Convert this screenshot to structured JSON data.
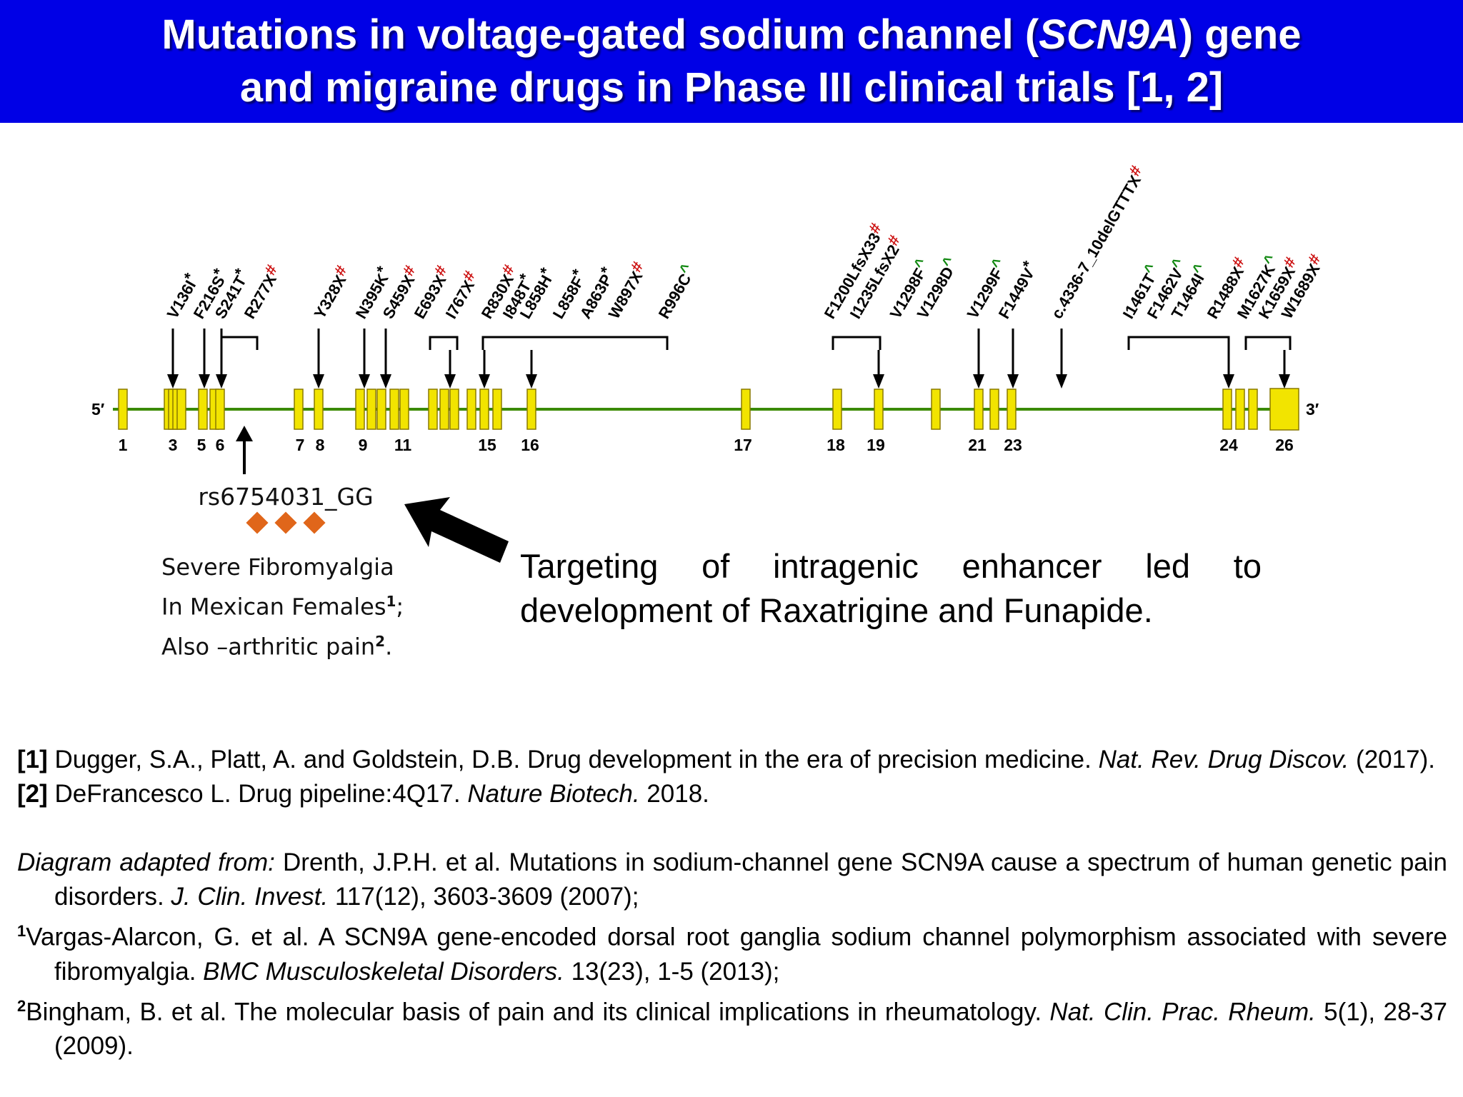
{
  "title": {
    "line1_prefix": "Mutations in voltage-gated sodium channel (",
    "line1_gene": "SCN9A",
    "line1_suffix": ") gene",
    "line2": "and migraine drugs in Phase III clinical trials [1, 2]"
  },
  "diagram": {
    "five_prime": "5′",
    "three_prime": "3′",
    "exon_numbers": [
      "1",
      "3",
      "5",
      "6",
      "7",
      "8",
      "9",
      "11",
      "15",
      "16",
      "17",
      "18",
      "19",
      "21",
      "23",
      "24",
      "26"
    ],
    "mutations": [
      {
        "label": "V136I",
        "symbol": "*",
        "symbol_color": "#000000"
      },
      {
        "label": "F216S",
        "symbol": "*",
        "symbol_color": "#000000"
      },
      {
        "label": "S241T",
        "symbol": "*",
        "symbol_color": "#000000"
      },
      {
        "label": "R277X",
        "symbol": "#",
        "symbol_color": "#cc1111"
      },
      {
        "label": "Y328X",
        "symbol": "#",
        "symbol_color": "#cc1111"
      },
      {
        "label": "N395K",
        "symbol": "*",
        "symbol_color": "#000000"
      },
      {
        "label": "S459X",
        "symbol": "#",
        "symbol_color": "#cc1111"
      },
      {
        "label": "E693X",
        "symbol": "#",
        "symbol_color": "#cc1111"
      },
      {
        "label": "I767X",
        "symbol": "#",
        "symbol_color": "#cc1111"
      },
      {
        "label": "R830X",
        "symbol": "#",
        "symbol_color": "#cc1111"
      },
      {
        "label": "I848T",
        "symbol": "*",
        "symbol_color": "#000000"
      },
      {
        "label": "L858H",
        "symbol": "*",
        "symbol_color": "#000000"
      },
      {
        "label": "L858F",
        "symbol": "*",
        "symbol_color": "#000000"
      },
      {
        "label": "A863P",
        "symbol": "*",
        "symbol_color": "#000000"
      },
      {
        "label": "W897X",
        "symbol": "#",
        "symbol_color": "#cc1111"
      },
      {
        "label": "R996C",
        "symbol": "^",
        "symbol_color": "#118811"
      },
      {
        "label": "F1200LfsX33",
        "symbol": "#",
        "symbol_color": "#cc1111"
      },
      {
        "label": "I1235LfsX2",
        "symbol": "#",
        "symbol_color": "#cc1111"
      },
      {
        "label": "V1298F",
        "symbol": "^",
        "symbol_color": "#118811"
      },
      {
        "label": "V1298D",
        "symbol": "^",
        "symbol_color": "#118811"
      },
      {
        "label": "V1299F",
        "symbol": "^",
        "symbol_color": "#118811"
      },
      {
        "label": "F1449V",
        "symbol": "*",
        "symbol_color": "#000000"
      },
      {
        "label": "c.4336-7_10delGTTTX",
        "symbol": "#",
        "symbol_color": "#cc1111"
      },
      {
        "label": "I1461T",
        "symbol": "^",
        "symbol_color": "#118811"
      },
      {
        "label": "F1462V",
        "symbol": "^",
        "symbol_color": "#118811"
      },
      {
        "label": "T1464I",
        "symbol": "^",
        "symbol_color": "#118811"
      },
      {
        "label": "R1488X",
        "symbol": "#",
        "symbol_color": "#cc1111"
      },
      {
        "label": "M1627K",
        "symbol": "^",
        "symbol_color": "#118811"
      },
      {
        "label": "K1659X",
        "symbol": "#",
        "symbol_color": "#cc1111"
      },
      {
        "label": "W1689X",
        "symbol": "#",
        "symbol_color": "#cc1111"
      }
    ],
    "exon_color": "#f2e400",
    "line_color": "#3a8a00"
  },
  "snp": {
    "label": "rs6754031_GG",
    "note_line1": "Severe Fibromyalgia",
    "note_line2_text": "In Mexican Females",
    "note_line2_sup": "1",
    "note_line2_end": ";",
    "note_line3_text": "Also –arthritic pain",
    "note_line3_sup": "2",
    "note_line3_end": ".",
    "diamond_color": "#e0661a"
  },
  "callout": {
    "text": "Targeting of intragenic enhancer led to development of Raxatrigine and Funapide."
  },
  "references": {
    "ref1_num": "[1]",
    "ref1_text": " Dugger, S.A., Platt, A. and Goldstein, D.B. Drug development in the era of precision medicine. ",
    "ref1_journal": "Nat. Rev. Drug Discov.",
    "ref1_year": " (2017).",
    "ref2_num": "[2]",
    "ref2_text": " DeFrancesco L. Drug pipeline:4Q17. ",
    "ref2_journal": "Nature Biotech.",
    "ref2_year": " 2018.",
    "adapted_prefix": "Diagram adapted from:",
    "adapted_text": " Drenth, J.P.H. et al. Mutations in sodium-channel gene SCN9A cause a spectrum of human genetic pain disorders. ",
    "adapted_journal": "J. Clin. Invest.",
    "adapted_year": " 117(12), 3603-3609 (2007);",
    "fn1_mark": "1",
    "fn1_text": "Vargas-Alarcon, G. et al. A SCN9A gene-encoded dorsal root ganglia sodium channel polymorphism associated with severe fibromyalgia. ",
    "fn1_journal": "BMC Musculoskeletal Disorders.",
    "fn1_year": " 13(23), 1-5 (2013);",
    "fn2_mark": "2",
    "fn2_text": "Bingham, B. et al. The molecular basis of pain and its clinical implications in rheumatology. ",
    "fn2_journal": "Nat. Clin. Prac. Rheum.",
    "fn2_year": " 5(1), 28-37 (2009)."
  }
}
